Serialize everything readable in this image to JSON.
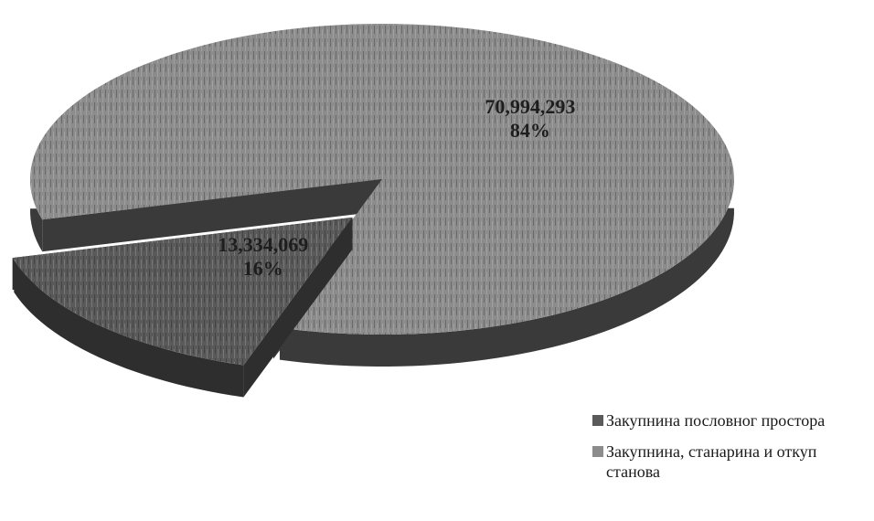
{
  "chart_data": {
    "type": "pie",
    "title": "",
    "slices": [
      {
        "label": "Закупнина пословног простора",
        "value": 13334069,
        "value_label": "13,334,069",
        "percent_label": "16%",
        "color": "#5a5a5a",
        "side_color": "#2e2e2e"
      },
      {
        "label": "Закупнина, станарина и откуп станова",
        "value": 70994293,
        "value_label": "70,994,293",
        "percent_label": "84%",
        "color": "#8c8c8c",
        "side_color": "#3a3a3a"
      }
    ],
    "exploded": "Закупнина пословног простора",
    "three_d": true,
    "legend_position": "bottom-right"
  }
}
